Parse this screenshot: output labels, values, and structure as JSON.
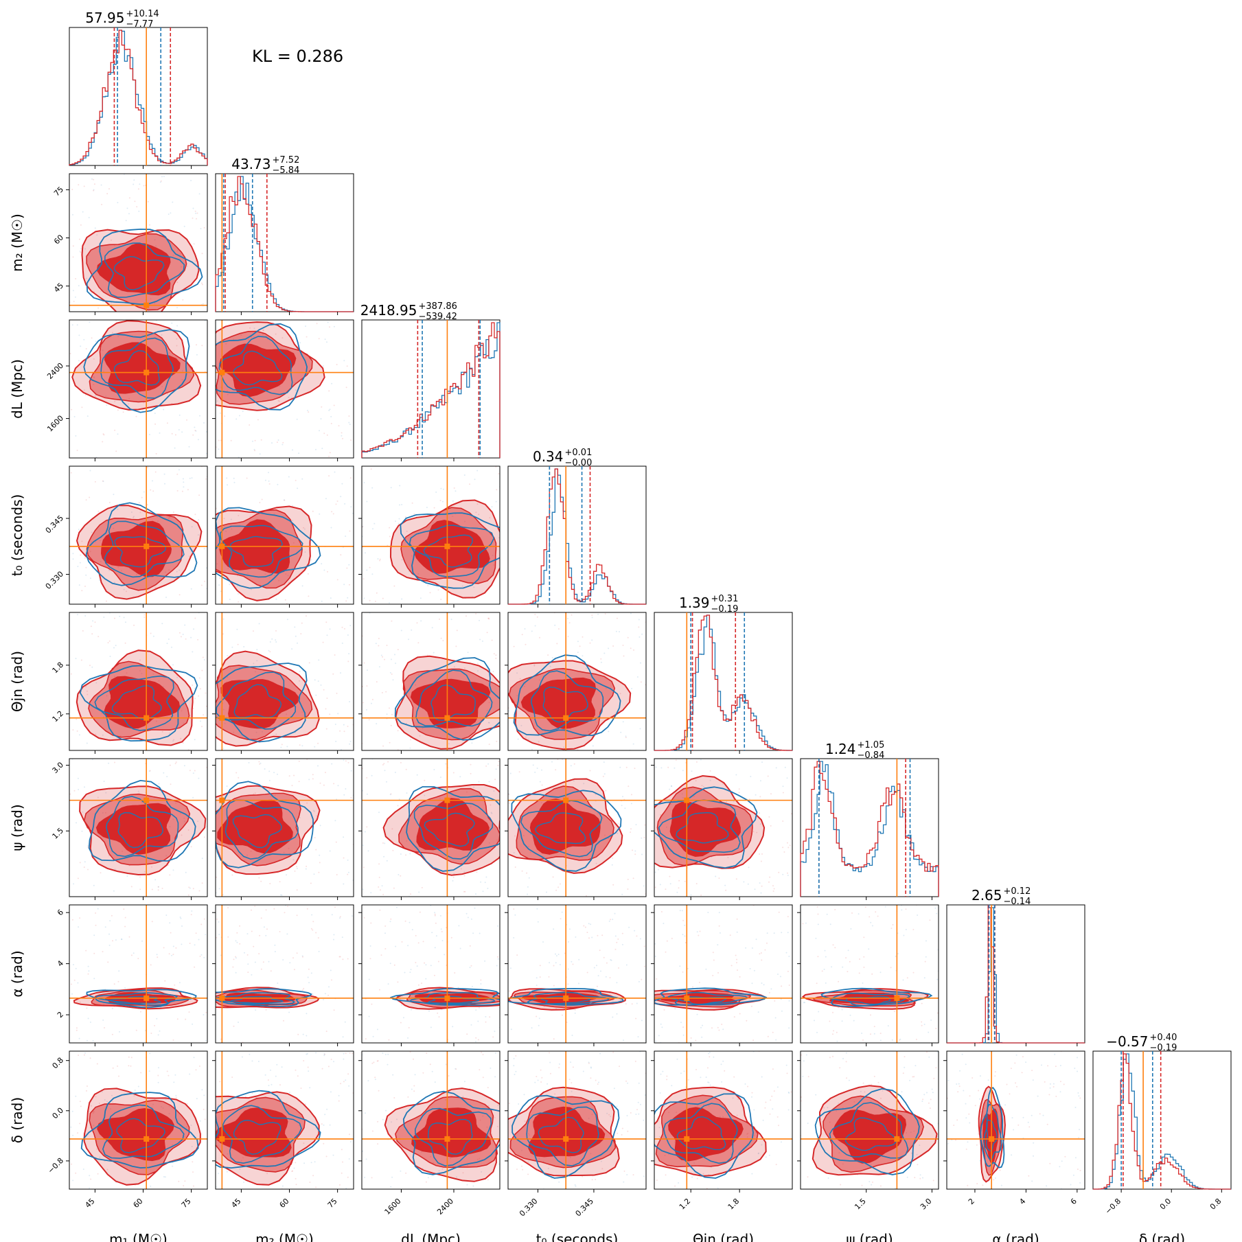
{
  "kl_label": "KL = 0.286",
  "colors": {
    "series_a": "#d62728",
    "series_b": "#1f77b4",
    "truth": "#ff7f0e"
  },
  "chart_data": {
    "type": "scatter",
    "chart_kind": "corner-plot",
    "series": [
      {
        "name": "",
        "color": "#d62728"
      },
      {
        "name": "",
        "color": "#1f77b4"
      }
    ],
    "parameters": [
      {
        "key": "m1",
        "label": "m₁ (M☉)",
        "range": [
          37,
          80
        ],
        "ticks": [
          "45",
          "60",
          "75"
        ],
        "tick_values": [
          45,
          60,
          75
        ],
        "truth": 61.0,
        "title": {
          "value": "57.95",
          "plus": "+10.14",
          "minus": "−7.77"
        }
      },
      {
        "key": "m2",
        "label": "m₂ (M☉)",
        "range": [
          37,
          80
        ],
        "ticks": [
          "45",
          "60",
          "75"
        ],
        "tick_values": [
          45,
          60,
          75
        ],
        "truth": 39.0,
        "title": {
          "value": "43.73",
          "plus": "+7.52",
          "minus": "−5.84"
        }
      },
      {
        "key": "dL",
        "label": "dL (Mpc)",
        "range": [
          1000,
          3100
        ],
        "ticks": [
          "1600",
          "2400"
        ],
        "tick_values": [
          1600,
          2400
        ],
        "truth": 2300,
        "title": {
          "value": "2418.95",
          "plus": "+387.86",
          "minus": "−539.42"
        }
      },
      {
        "key": "t0",
        "label": "t₀ (seconds)",
        "range": [
          0.322,
          0.359
        ],
        "ticks": [
          "0.330",
          "0.345"
        ],
        "tick_values": [
          0.33,
          0.345
        ],
        "truth": 0.3375,
        "title": {
          "value": "0.34",
          "plus": "+0.01",
          "minus": "−0.00"
        }
      },
      {
        "key": "theta",
        "label": "Θjn (rad)",
        "range": [
          0.75,
          2.45
        ],
        "ticks": [
          "1.2",
          "1.8"
        ],
        "tick_values": [
          1.2,
          1.8
        ],
        "truth": 1.15,
        "title": {
          "value": "1.39",
          "plus": "+0.31",
          "minus": "−0.19"
        }
      },
      {
        "key": "psi",
        "label": "ψ (rad)",
        "range": [
          0.0,
          3.15
        ],
        "ticks": [
          "1.5",
          "3.0"
        ],
        "tick_values": [
          1.5,
          3.0
        ],
        "truth": 2.2,
        "title": {
          "value": "1.24",
          "plus": "+1.05",
          "minus": "−0.84"
        }
      },
      {
        "key": "alpha",
        "label": "α (rad)",
        "range": [
          0.9,
          6.3
        ],
        "ticks": [
          "2",
          "4",
          "6"
        ],
        "tick_values": [
          2,
          4,
          6
        ],
        "truth": 2.65,
        "title": {
          "value": "2.65",
          "plus": "+0.12",
          "minus": "−0.14"
        }
      },
      {
        "key": "delta",
        "label": "δ (rad)",
        "range": [
          -1.25,
          0.95
        ],
        "ticks": [
          "−0.8",
          "0.0",
          "0.8"
        ],
        "tick_values": [
          -0.8,
          0.0,
          0.8
        ],
        "truth": -0.45,
        "title": {
          "value": "−0.57",
          "plus": "+0.40",
          "minus": "−0.19"
        }
      }
    ],
    "marginal_quantiles": {
      "series_a": [
        [
          51.0,
          68.5
        ],
        [
          40.0,
          53.0
        ],
        [
          1850,
          2780
        ],
        [
          0.3331,
          0.344
        ],
        [
          1.22,
          1.75
        ],
        [
          0.42,
          2.4
        ],
        [
          2.52,
          2.78
        ],
        [
          -0.77,
          -0.17
        ]
      ],
      "series_b": [
        [
          52.0,
          65.5
        ],
        [
          39.5,
          48.5
        ],
        [
          1920,
          2800
        ],
        [
          0.3331,
          0.3418
        ],
        [
          1.2,
          1.86
        ],
        [
          0.42,
          2.5
        ],
        [
          2.55,
          2.77
        ],
        [
          -0.8,
          -0.3
        ]
      ]
    }
  }
}
